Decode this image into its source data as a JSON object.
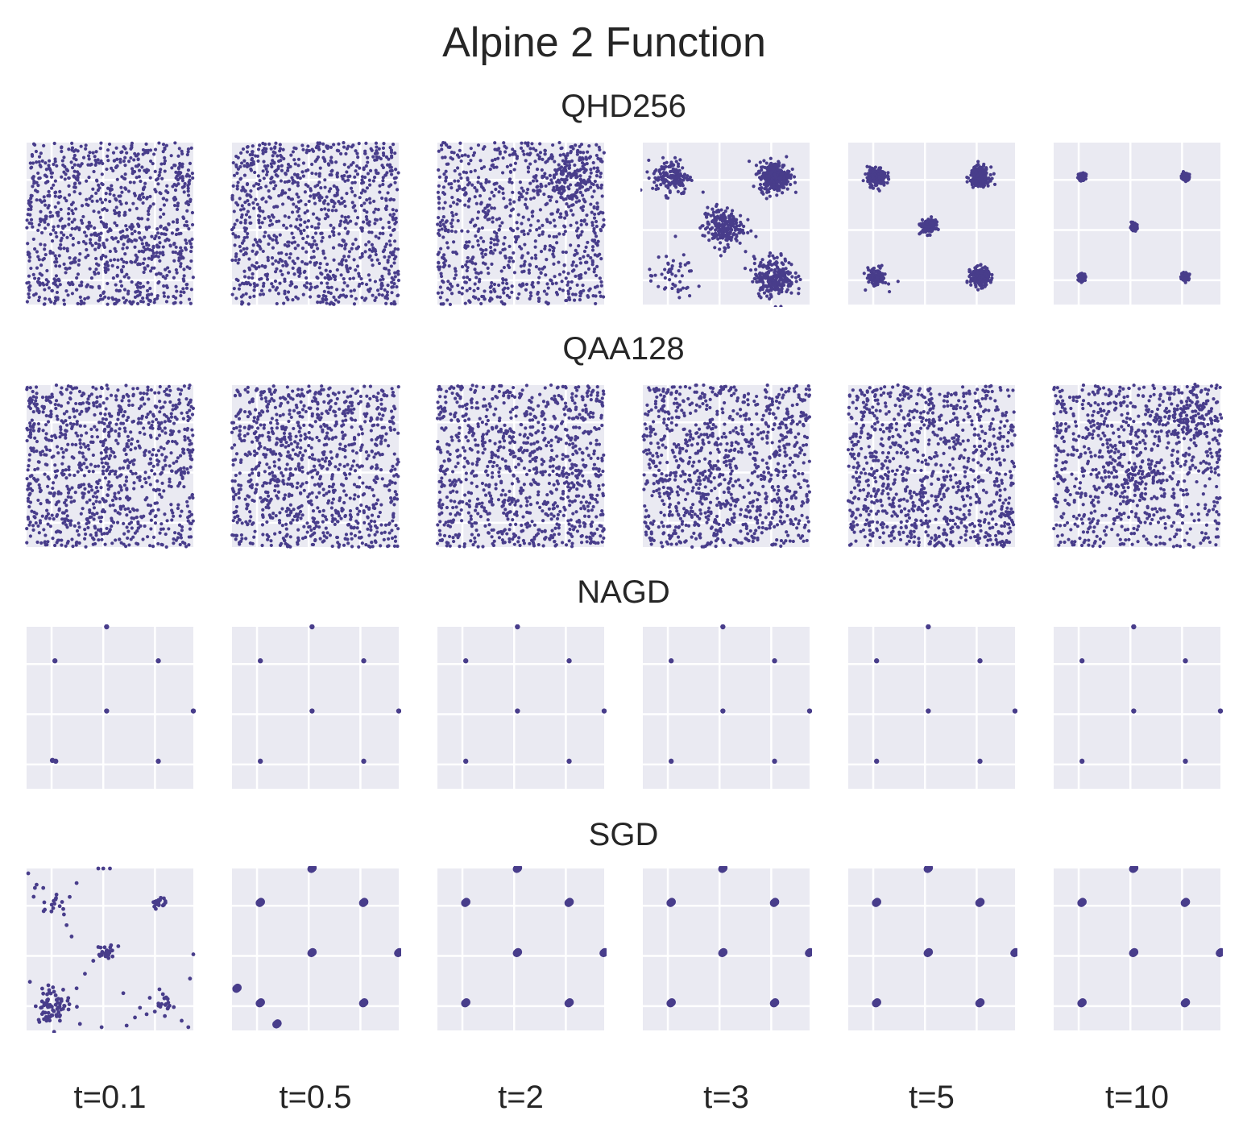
{
  "title": "Alpine 2 Function",
  "colors": {
    "marker": "#483d8b",
    "panel_bg": "#eaeaf2",
    "grid": "#ffffff"
  },
  "chart_data": {
    "type": "scatter",
    "title": "Alpine 2 Function",
    "domain": [
      0,
      10
    ],
    "grid": true,
    "times": [
      "t=0.1",
      "t=0.5",
      "t=2",
      "t=3",
      "t=5",
      "t=10"
    ],
    "rows": [
      {
        "name": "QHD256",
        "panels": [
          {
            "t": "t=0.1",
            "distribution": "uniform"
          },
          {
            "t": "t=0.5",
            "distribution": "uniform"
          },
          {
            "t": "t=2",
            "distribution": "partially concentrated",
            "clusters": [
              {
                "x": 7.9,
                "y": 7.9,
                "spread": 0.9,
                "weight": 0.15
              }
            ]
          },
          {
            "t": "t=3",
            "distribution": "clustered",
            "clusters": [
              {
                "x": 1.7,
                "y": 7.9,
                "spread": 0.55,
                "weight": 0.15
              },
              {
                "x": 7.9,
                "y": 7.9,
                "spread": 0.45,
                "weight": 0.33
              },
              {
                "x": 4.8,
                "y": 4.8,
                "spread": 0.6,
                "weight": 0.22
              },
              {
                "x": 1.7,
                "y": 1.7,
                "spread": 0.7,
                "weight": 0.05
              },
              {
                "x": 7.9,
                "y": 1.7,
                "spread": 0.6,
                "weight": 0.25
              }
            ]
          },
          {
            "t": "t=5",
            "distribution": "clustered",
            "clusters": [
              {
                "x": 1.7,
                "y": 7.9,
                "spread": 0.28,
                "weight": 0.22
              },
              {
                "x": 7.9,
                "y": 7.9,
                "spread": 0.28,
                "weight": 0.28
              },
              {
                "x": 4.8,
                "y": 4.8,
                "spread": 0.22,
                "weight": 0.15
              },
              {
                "x": 1.7,
                "y": 1.7,
                "spread": 0.3,
                "weight": 0.1
              },
              {
                "x": 7.9,
                "y": 1.7,
                "spread": 0.28,
                "weight": 0.25
              }
            ]
          },
          {
            "t": "t=10",
            "distribution": "clustered",
            "clusters": [
              {
                "x": 1.7,
                "y": 7.9,
                "spread": 0.1,
                "weight": 0.2
              },
              {
                "x": 7.9,
                "y": 7.9,
                "spread": 0.1,
                "weight": 0.3
              },
              {
                "x": 4.8,
                "y": 4.8,
                "spread": 0.1,
                "weight": 0.15
              },
              {
                "x": 1.7,
                "y": 1.7,
                "spread": 0.1,
                "weight": 0.1
              },
              {
                "x": 7.9,
                "y": 1.7,
                "spread": 0.1,
                "weight": 0.25
              }
            ]
          }
        ]
      },
      {
        "name": "QAA128",
        "panels": [
          {
            "t": "t=0.1",
            "distribution": "uniform"
          },
          {
            "t": "t=0.5",
            "distribution": "uniform"
          },
          {
            "t": "t=2",
            "distribution": "uniform"
          },
          {
            "t": "t=3",
            "distribution": "uniform"
          },
          {
            "t": "t=5",
            "distribution": "uniform"
          },
          {
            "t": "t=10",
            "distribution": "partially concentrated",
            "clusters": [
              {
                "x": 7.9,
                "y": 7.9,
                "spread": 0.9,
                "weight": 0.1
              },
              {
                "x": 4.8,
                "y": 4.8,
                "spread": 1.0,
                "weight": 0.08
              }
            ]
          }
        ]
      },
      {
        "name": "NAGD",
        "panels": [
          {
            "t": "t=0.1",
            "distribution": "points",
            "points": [
              [
                1.7,
                7.9
              ],
              [
                7.9,
                7.9
              ],
              [
                4.8,
                4.8
              ],
              [
                1.55,
                1.75
              ],
              [
                1.75,
                1.7
              ],
              [
                7.9,
                1.7
              ],
              [
                4.8,
                10.0
              ],
              [
                10.0,
                4.8
              ]
            ]
          },
          {
            "t": "t=0.5",
            "distribution": "points",
            "points": [
              [
                1.7,
                7.9
              ],
              [
                7.9,
                7.9
              ],
              [
                4.8,
                4.8
              ],
              [
                1.7,
                1.7
              ],
              [
                7.9,
                1.7
              ],
              [
                4.8,
                10.0
              ],
              [
                10.0,
                4.8
              ]
            ]
          },
          {
            "t": "t=2",
            "distribution": "points",
            "points": [
              [
                1.7,
                7.9
              ],
              [
                7.9,
                7.9
              ],
              [
                4.8,
                4.8
              ],
              [
                1.7,
                1.7
              ],
              [
                7.9,
                1.7
              ],
              [
                4.8,
                10.0
              ],
              [
                10.0,
                4.8
              ]
            ]
          },
          {
            "t": "t=3",
            "distribution": "points",
            "points": [
              [
                1.7,
                7.9
              ],
              [
                7.9,
                7.9
              ],
              [
                4.8,
                4.8
              ],
              [
                1.7,
                1.7
              ],
              [
                7.9,
                1.7
              ],
              [
                4.8,
                10.0
              ],
              [
                10.0,
                4.8
              ]
            ]
          },
          {
            "t": "t=5",
            "distribution": "points",
            "points": [
              [
                1.7,
                7.9
              ],
              [
                7.9,
                7.9
              ],
              [
                4.8,
                4.8
              ],
              [
                1.7,
                1.7
              ],
              [
                7.9,
                1.7
              ],
              [
                4.8,
                10.0
              ],
              [
                10.0,
                4.8
              ]
            ]
          },
          {
            "t": "t=10",
            "distribution": "points",
            "points": [
              [
                1.7,
                7.9
              ],
              [
                7.9,
                7.9
              ],
              [
                4.8,
                4.8
              ],
              [
                1.7,
                1.7
              ],
              [
                7.9,
                1.7
              ],
              [
                4.8,
                10.0
              ],
              [
                10.0,
                4.8
              ]
            ]
          }
        ]
      },
      {
        "name": "SGD",
        "panels": [
          {
            "t": "t=0.1",
            "distribution": "scattered trajectories",
            "clusters": [
              {
                "x": 1.6,
                "y": 1.6,
                "spread": 0.55,
                "weight": 0.35
              },
              {
                "x": 4.8,
                "y": 4.8,
                "spread": 0.25,
                "weight": 0.12
              },
              {
                "x": 7.9,
                "y": 7.9,
                "spread": 0.2,
                "weight": 0.1
              },
              {
                "x": 8.1,
                "y": 1.8,
                "spread": 0.3,
                "weight": 0.1
              },
              {
                "x": 1.6,
                "y": 7.9,
                "spread": 0.4,
                "weight": 0.08
              }
            ],
            "points": [
              [
                0.5,
                8.8
              ],
              [
                0.6,
                9.0
              ],
              [
                1.0,
                8.8
              ],
              [
                2.2,
                7.5
              ],
              [
                2.4,
                6.5
              ],
              [
                2.7,
                5.8
              ],
              [
                0.2,
                3.0
              ],
              [
                3.5,
                3.5
              ],
              [
                4.0,
                4.3
              ],
              [
                4.4,
                4.6
              ],
              [
                5.5,
                5.2
              ],
              [
                3.0,
                2.6
              ],
              [
                2.5,
                2.0
              ],
              [
                1.2,
                0.6
              ],
              [
                2.0,
                0.6
              ],
              [
                3.2,
                0.4
              ],
              [
                4.5,
                0.2
              ],
              [
                6.0,
                0.3
              ],
              [
                6.5,
                0.8
              ],
              [
                7.2,
                1.0
              ],
              [
                6.8,
                1.4
              ],
              [
                5.8,
                2.3
              ],
              [
                9.3,
                0.6
              ],
              [
                9.7,
                0.2
              ],
              [
                9.8,
                3.2
              ],
              [
                10.0,
                4.7
              ],
              [
                0.1,
                9.7
              ],
              [
                4.3,
                10.0
              ],
              [
                4.6,
                10.0
              ],
              [
                5.0,
                10.0
              ],
              [
                3.0,
                9.1
              ]
            ]
          },
          {
            "t": "t=0.5",
            "distribution": "points",
            "points": [
              [
                1.7,
                7.9
              ],
              [
                7.9,
                7.9
              ],
              [
                4.8,
                4.8
              ],
              [
                1.7,
                1.7
              ],
              [
                7.9,
                1.7
              ],
              [
                4.8,
                10.0
              ],
              [
                10.0,
                4.8
              ],
              [
                0.3,
                2.6
              ],
              [
                2.7,
                0.4
              ]
            ],
            "heavy": true
          },
          {
            "t": "t=2",
            "distribution": "points",
            "points": [
              [
                1.7,
                7.9
              ],
              [
                7.9,
                7.9
              ],
              [
                4.8,
                4.8
              ],
              [
                1.7,
                1.7
              ],
              [
                7.9,
                1.7
              ],
              [
                4.8,
                10.0
              ],
              [
                10.0,
                4.8
              ]
            ],
            "heavy": true
          },
          {
            "t": "t=3",
            "distribution": "points",
            "points": [
              [
                1.7,
                7.9
              ],
              [
                7.9,
                7.9
              ],
              [
                4.8,
                4.8
              ],
              [
                1.7,
                1.7
              ],
              [
                7.9,
                1.7
              ],
              [
                4.8,
                10.0
              ],
              [
                10.0,
                4.8
              ]
            ],
            "heavy": true
          },
          {
            "t": "t=5",
            "distribution": "points",
            "points": [
              [
                1.7,
                7.9
              ],
              [
                7.9,
                7.9
              ],
              [
                4.8,
                4.8
              ],
              [
                1.7,
                1.7
              ],
              [
                7.9,
                1.7
              ],
              [
                4.8,
                10.0
              ],
              [
                10.0,
                4.8
              ]
            ],
            "heavy": true
          },
          {
            "t": "t=10",
            "distribution": "points",
            "points": [
              [
                1.7,
                7.9
              ],
              [
                7.9,
                7.9
              ],
              [
                4.8,
                4.8
              ],
              [
                1.7,
                1.7
              ],
              [
                7.9,
                1.7
              ],
              [
                4.8,
                10.0
              ],
              [
                10.0,
                4.8
              ]
            ],
            "heavy": true
          }
        ]
      }
    ]
  }
}
